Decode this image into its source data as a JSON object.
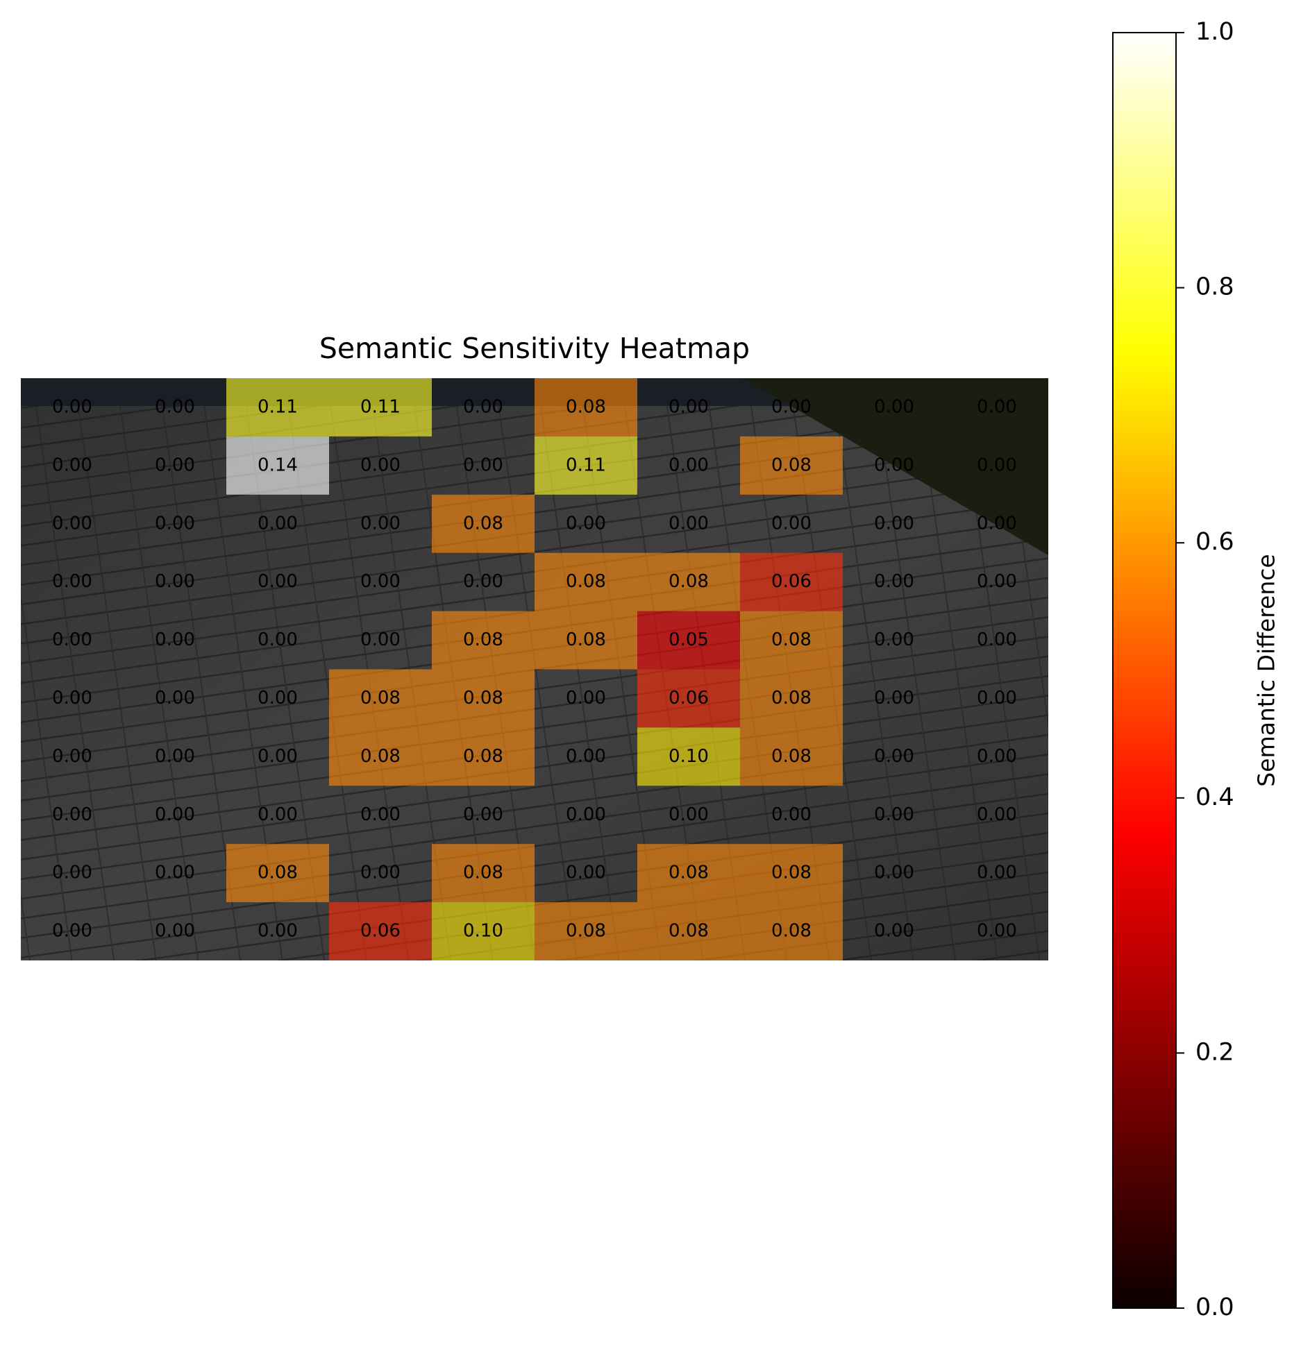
{
  "chart_data": {
    "type": "heatmap",
    "title": "Semantic Sensitivity Heatmap",
    "colormap": "hot",
    "values": [
      [
        0,
        0,
        0.11,
        0.11,
        0,
        0.08,
        0,
        0,
        0,
        0
      ],
      [
        0,
        0,
        0.14,
        0,
        0,
        0.11,
        0,
        0.08,
        0,
        0
      ],
      [
        0,
        0,
        0,
        0,
        0.08,
        0,
        0,
        0,
        0,
        0
      ],
      [
        0,
        0,
        0,
        0,
        0,
        0.08,
        0.08,
        0.06,
        0,
        0
      ],
      [
        0,
        0,
        0,
        0,
        0.08,
        0.08,
        0.05,
        0.08,
        0,
        0
      ],
      [
        0,
        0,
        0,
        0.08,
        0.08,
        0,
        0.06,
        0.08,
        0,
        0
      ],
      [
        0,
        0,
        0,
        0.08,
        0.08,
        0,
        0.1,
        0.08,
        0,
        0
      ],
      [
        0,
        0,
        0,
        0,
        0,
        0,
        0,
        0,
        0,
        0
      ],
      [
        0,
        0,
        0.08,
        0,
        0.08,
        0,
        0.08,
        0.08,
        0,
        0
      ],
      [
        0,
        0,
        0,
        0.06,
        0.1,
        0.08,
        0.08,
        0.08,
        0,
        0
      ]
    ],
    "value_labels": [
      [
        "0.00",
        "0.00",
        "0.11",
        "0.11",
        "0.00",
        "0.08",
        "0.00",
        "0.00",
        "0.00",
        "0.00"
      ],
      [
        "0.00",
        "0.00",
        "0.14",
        "0.00",
        "0.00",
        "0.11",
        "0.00",
        "0.08",
        "0.00",
        "0.00"
      ],
      [
        "0.00",
        "0.00",
        "0.00",
        "0.00",
        "0.08",
        "0.00",
        "0.00",
        "0.00",
        "0.00",
        "0.00"
      ],
      [
        "0.00",
        "0.00",
        "0.00",
        "0.00",
        "0.00",
        "0.08",
        "0.08",
        "0.06",
        "0.00",
        "0.00"
      ],
      [
        "0.00",
        "0.00",
        "0.00",
        "0.00",
        "0.08",
        "0.08",
        "0.05",
        "0.08",
        "0.00",
        "0.00"
      ],
      [
        "0.00",
        "0.00",
        "0.00",
        "0.08",
        "0.08",
        "0.00",
        "0.06",
        "0.08",
        "0.00",
        "0.00"
      ],
      [
        "0.00",
        "0.00",
        "0.00",
        "0.08",
        "0.08",
        "0.00",
        "0.10",
        "0.08",
        "0.00",
        "0.00"
      ],
      [
        "0.00",
        "0.00",
        "0.00",
        "0.00",
        "0.00",
        "0.00",
        "0.00",
        "0.00",
        "0.00",
        "0.00"
      ],
      [
        "0.00",
        "0.00",
        "0.08",
        "0.00",
        "0.08",
        "0.00",
        "0.08",
        "0.08",
        "0.00",
        "0.00"
      ],
      [
        "0.00",
        "0.00",
        "0.00",
        "0.06",
        "0.10",
        "0.08",
        "0.08",
        "0.08",
        "0.00",
        "0.00"
      ]
    ],
    "colorbar": {
      "label": "Semantic Difference",
      "ylim": [
        0,
        1
      ],
      "yticks": [
        {
          "value": 0,
          "label": "0.0"
        },
        0.2,
        0.4,
        0.6,
        0.8,
        {
          "value": 1,
          "label": "1.0"
        }
      ]
    }
  }
}
